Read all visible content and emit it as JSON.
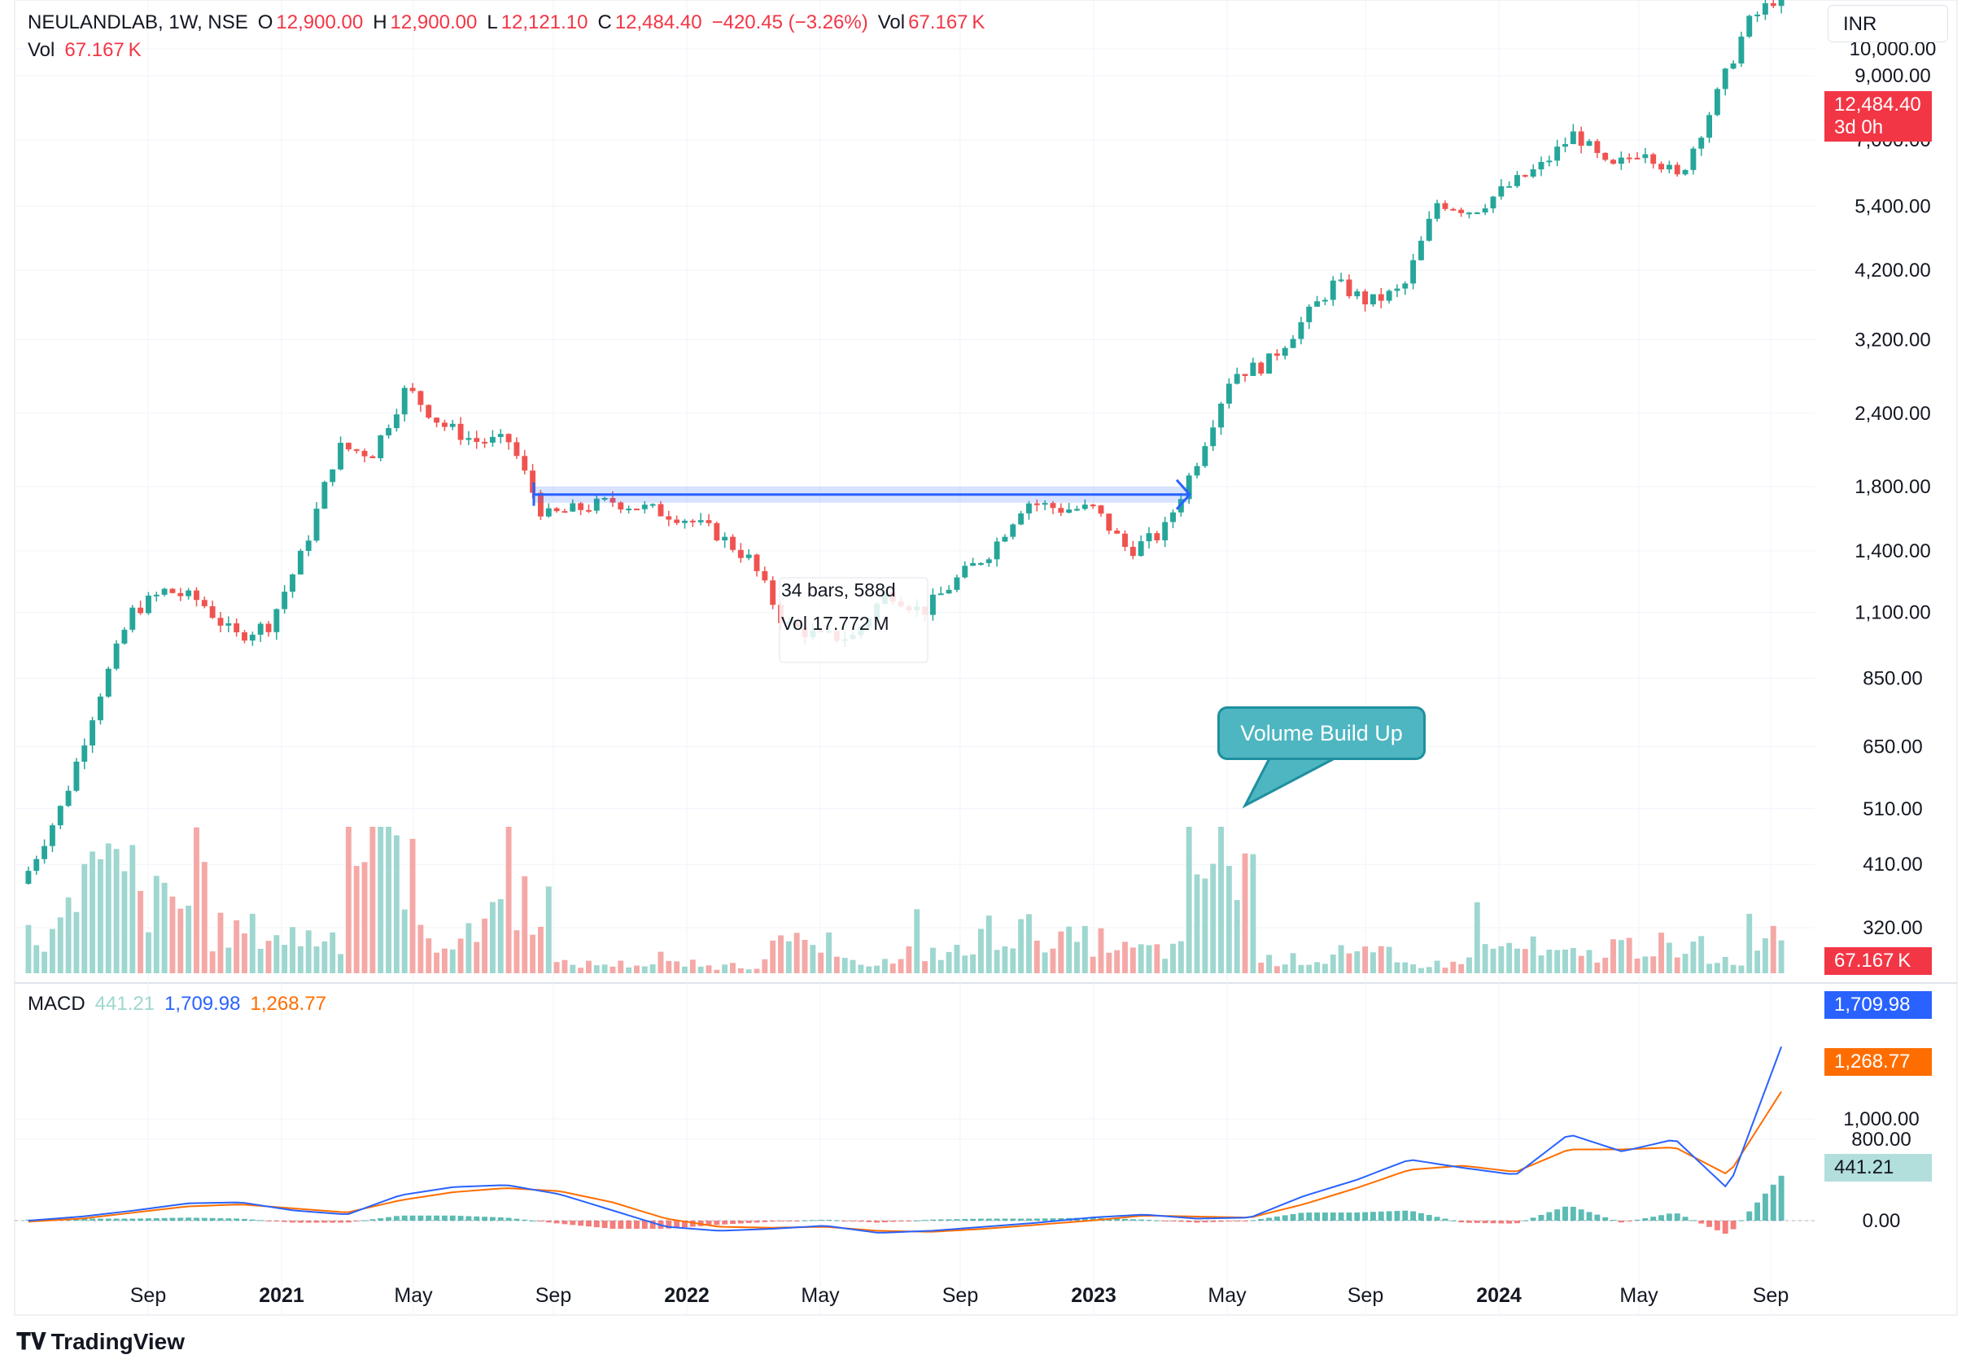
{
  "header": {
    "symbol": "NEULANDLAB, 1W, NSE",
    "open_label": "O",
    "open": "12,900.00",
    "high_label": "H",
    "high": "12,900.00",
    "low_label": "L",
    "low": "12,121.10",
    "close_label": "C",
    "close": "12,484.40",
    "change": "−420.45 (−3.26%)",
    "vol_label": "Vol",
    "vol": "67.167 K",
    "vol_row_label": "Vol",
    "vol_row_value": "67.167 K"
  },
  "currency": "INR",
  "price_badge": {
    "value": "12,484.40",
    "countdown": "3d 0h",
    "color": "#f23645"
  },
  "volume_badge": {
    "value": "67.167 K",
    "color": "#f23645"
  },
  "macd_legend": {
    "label": "MACD",
    "hist": "441.21",
    "macd": "1,709.98",
    "signal": "1,268.77"
  },
  "macd_badges": {
    "macd": "1,709.98",
    "signal": "1,268.77",
    "hist": "441.21"
  },
  "measure": {
    "bars": "34 bars, 588d",
    "vol": "Vol 17.772 M"
  },
  "annotation": "Volume Build Up",
  "brand": "TradingView",
  "colors": {
    "up": "#26a69a",
    "down": "#ef5350",
    "up_vol": "#9ed7cf",
    "down_vol": "#f4a9a7",
    "macd": "#2962ff",
    "signal": "#ff6d00",
    "grid": "#f0f3fa"
  },
  "chart_data": [
    {
      "type": "candlestick",
      "title": "NEULANDLAB, 1W, NSE",
      "y_scale": "log",
      "y_ticks": [
        "320.00",
        "410.00",
        "510.00",
        "650.00",
        "850.00",
        "1,100.00",
        "1,400.00",
        "1,800.00",
        "2,400.00",
        "3,200.00",
        "4,200.00",
        "5,400.00",
        "7,000.00",
        "9,000.00",
        "10,000.00"
      ],
      "x_ticks": [
        "Sep",
        "2021",
        "May",
        "Sep",
        "2022",
        "May",
        "Sep",
        "2023",
        "May",
        "Sep",
        "2024",
        "May",
        "Sep"
      ],
      "series": [
        {
          "name": "Close",
          "x": [
            "2020-06",
            "2020-07",
            "2020-08",
            "2020-09",
            "2020-10",
            "2020-11",
            "2020-12",
            "2021-01",
            "2021-02",
            "2021-03",
            "2021-04",
            "2021-05",
            "2021-06",
            "2021-07",
            "2021-08",
            "2021-09",
            "2021-10",
            "2021-11",
            "2021-12",
            "2022-01",
            "2022-02",
            "2022-03",
            "2022-04",
            "2022-05",
            "2022-06",
            "2022-07",
            "2022-08",
            "2022-09",
            "2022-10",
            "2022-11",
            "2022-12",
            "2023-01",
            "2023-02",
            "2023-03",
            "2023-04",
            "2023-05",
            "2023-06",
            "2023-07",
            "2023-08",
            "2023-09",
            "2023-10",
            "2023-11",
            "2023-12",
            "2024-01",
            "2024-02",
            "2024-03",
            "2024-04",
            "2024-05",
            "2024-06",
            "2024-07",
            "2024-08",
            "2024-09"
          ],
          "values": [
            400,
            520,
            780,
            1100,
            1200,
            1150,
            1000,
            1050,
            1400,
            2100,
            2050,
            2650,
            2300,
            2150,
            2150,
            1600,
            1650,
            1700,
            1650,
            1600,
            1500,
            1350,
            1050,
            1000,
            1000,
            1200,
            1100,
            1250,
            1400,
            1700,
            1650,
            1650,
            1400,
            1500,
            2000,
            2800,
            2900,
            3400,
            4000,
            3700,
            3900,
            5500,
            5300,
            5800,
            6300,
            7200,
            6200,
            6800,
            6000,
            8000,
            11000,
            12484.4
          ]
        }
      ],
      "annotations": [
        {
          "type": "price_range",
          "bars": "34 bars, 588d",
          "volume": "Vol 17.772 M",
          "level": 1750
        },
        {
          "type": "callout",
          "text": "Volume Build Up"
        }
      ]
    },
    {
      "type": "bar",
      "title": "Vol",
      "x": [
        "2020-06",
        "2020-08",
        "2020-10",
        "2020-12",
        "2021-02",
        "2021-04",
        "2021-06",
        "2021-08",
        "2021-10",
        "2021-12",
        "2022-02",
        "2022-04",
        "2022-06",
        "2022-08",
        "2022-10",
        "2022-12",
        "2023-02",
        "2023-04",
        "2023-06",
        "2023-08",
        "2023-10",
        "2023-12",
        "2024-02",
        "2024-04",
        "2024-06",
        "2024-08"
      ],
      "values": [
        180,
        420,
        300,
        180,
        160,
        500,
        150,
        320,
        40,
        40,
        30,
        120,
        50,
        90,
        180,
        140,
        100,
        480,
        60,
        80,
        40,
        110,
        80,
        120,
        60,
        190
      ],
      "units": "K",
      "last_value": "67.167 K"
    },
    {
      "type": "line",
      "title": "MACD",
      "y_ticks": [
        "0.00",
        "800.00",
        "1,000.00"
      ],
      "series": [
        {
          "name": "MACD",
          "values": [
            0,
            40,
            100,
            170,
            180,
            100,
            60,
            250,
            330,
            350,
            260,
            100,
            -60,
            -100,
            -80,
            -50,
            -120,
            -100,
            -60,
            -20,
            30,
            60,
            20,
            30,
            240,
            400,
            600,
            520,
            450,
            850,
            680,
            800,
            310,
            1709.98
          ]
        },
        {
          "name": "Signal",
          "values": [
            -10,
            20,
            80,
            140,
            160,
            120,
            80,
            200,
            280,
            320,
            290,
            180,
            20,
            -60,
            -70,
            -60,
            -100,
            -110,
            -80,
            -40,
            0,
            50,
            40,
            30,
            160,
            320,
            500,
            540,
            480,
            700,
            700,
            720,
            450,
            1268.77
          ]
        }
      ],
      "histogram_last": 441.21
    }
  ]
}
